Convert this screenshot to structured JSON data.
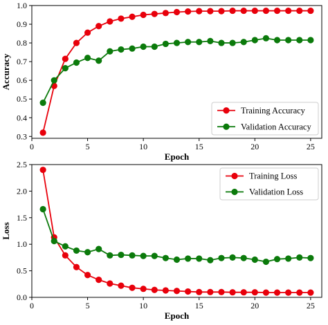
{
  "chart_data": [
    {
      "type": "line",
      "xlabel": "Epoch",
      "ylabel": "Accuracy",
      "xlim": [
        0,
        26
      ],
      "ylim": [
        0.29,
        1.0
      ],
      "xticks": [
        0,
        5,
        10,
        15,
        20,
        25
      ],
      "yticks": [
        0.3,
        0.4,
        0.5,
        0.6,
        0.7,
        0.8,
        0.9,
        1.0
      ],
      "ytick_labels": [
        "0.3",
        "0.4",
        "0.5",
        "0.6",
        "0.7",
        "0.8",
        "0.9",
        "1.0"
      ],
      "legend_position": "lower-right",
      "x": [
        1,
        2,
        3,
        4,
        5,
        6,
        7,
        8,
        9,
        10,
        11,
        12,
        13,
        14,
        15,
        16,
        17,
        18,
        19,
        20,
        21,
        22,
        23,
        24,
        25
      ],
      "series": [
        {
          "name": "Training Accuracy",
          "color": "#e8000b",
          "values": [
            0.32,
            0.57,
            0.715,
            0.8,
            0.855,
            0.89,
            0.915,
            0.93,
            0.94,
            0.95,
            0.955,
            0.96,
            0.965,
            0.968,
            0.97,
            0.97,
            0.97,
            0.972,
            0.972,
            0.972,
            0.972,
            0.972,
            0.972,
            0.972,
            0.972
          ]
        },
        {
          "name": "Validation Accuracy",
          "color": "#0b7a0b",
          "values": [
            0.48,
            0.6,
            0.665,
            0.695,
            0.72,
            0.705,
            0.755,
            0.765,
            0.77,
            0.78,
            0.78,
            0.795,
            0.8,
            0.805,
            0.805,
            0.81,
            0.8,
            0.8,
            0.805,
            0.815,
            0.825,
            0.815,
            0.815,
            0.815,
            0.815
          ]
        }
      ]
    },
    {
      "type": "line",
      "xlabel": "Epoch",
      "ylabel": "Loss",
      "xlim": [
        0,
        26
      ],
      "ylim": [
        0,
        2.5
      ],
      "xticks": [
        0,
        5,
        10,
        15,
        20,
        25
      ],
      "yticks": [
        0,
        0.5,
        1.0,
        1.5,
        2.0,
        2.5
      ],
      "ytick_labels": [
        "0.0",
        "0.5",
        "1.0",
        "1.5",
        "2.0",
        "2.5"
      ],
      "legend_position": "upper-right",
      "x": [
        1,
        2,
        3,
        4,
        5,
        6,
        7,
        8,
        9,
        10,
        11,
        12,
        13,
        14,
        15,
        16,
        17,
        18,
        19,
        20,
        21,
        22,
        23,
        24,
        25
      ],
      "series": [
        {
          "name": "Training Loss",
          "color": "#e8000b",
          "values": [
            2.4,
            1.13,
            0.79,
            0.57,
            0.42,
            0.33,
            0.26,
            0.22,
            0.18,
            0.16,
            0.14,
            0.13,
            0.12,
            0.11,
            0.1,
            0.1,
            0.1,
            0.095,
            0.095,
            0.095,
            0.09,
            0.09,
            0.09,
            0.09,
            0.09
          ]
        },
        {
          "name": "Validation Loss",
          "color": "#0b7a0b",
          "values": [
            1.66,
            1.06,
            0.96,
            0.88,
            0.85,
            0.91,
            0.79,
            0.8,
            0.79,
            0.78,
            0.78,
            0.74,
            0.71,
            0.73,
            0.73,
            0.7,
            0.74,
            0.75,
            0.74,
            0.71,
            0.67,
            0.72,
            0.73,
            0.75,
            0.74
          ]
        }
      ]
    }
  ]
}
